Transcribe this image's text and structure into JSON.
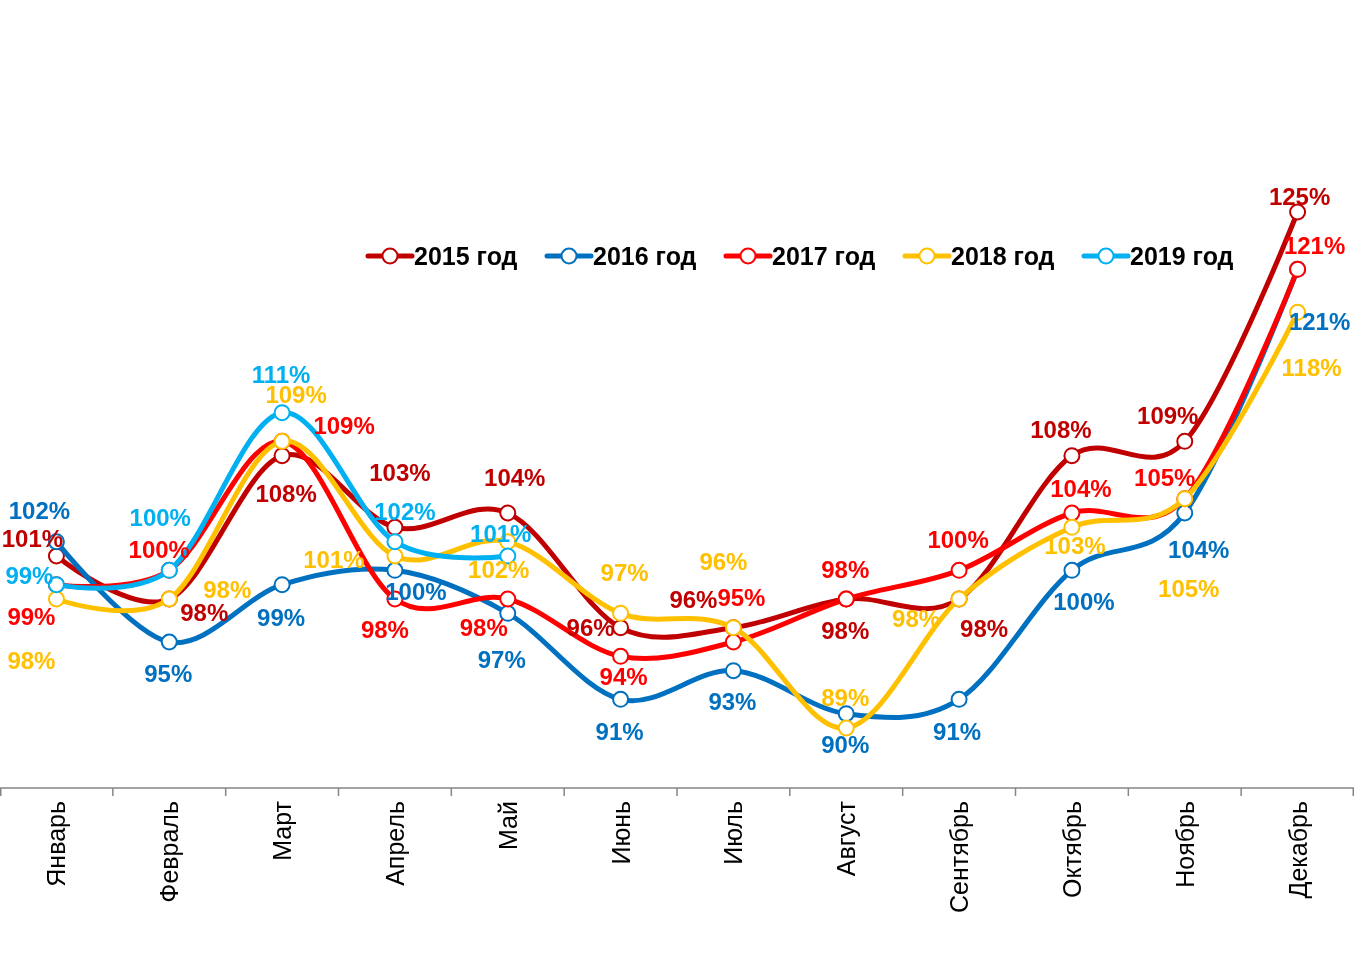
{
  "chart_data": {
    "type": "line",
    "categories": [
      "Январь",
      "Февраль",
      "Март",
      "Апрель",
      "Май",
      "Июнь",
      "Июль",
      "Август",
      "Сентябрь",
      "Октябрь",
      "Ноябрь",
      "Декабрь"
    ],
    "series": [
      {
        "name": "2015 год",
        "color": "#c00000",
        "values": [
          101,
          98,
          108,
          103,
          104,
          96,
          96,
          98,
          98,
          108,
          109,
          125
        ],
        "value_labels": [
          "101%",
          "98%",
          "108%",
          "103%",
          "104%",
          "96%",
          "96%",
          "98%",
          "98%",
          "108%",
          "109%",
          "125%"
        ]
      },
      {
        "name": "2016 год",
        "color": "#0070c0",
        "values": [
          102,
          95,
          99,
          100,
          97,
          91,
          93,
          90,
          91,
          100,
          104,
          121
        ],
        "value_labels": [
          "102%",
          "95%",
          "99%",
          "100%",
          "97%",
          "91%",
          "93%",
          "90%",
          "91%",
          "100%",
          "104%",
          "121%"
        ]
      },
      {
        "name": "2017 год",
        "color": "#ff0000",
        "values": [
          99,
          100,
          109,
          98,
          98,
          94,
          95,
          98,
          100,
          104,
          105,
          121
        ],
        "value_labels": [
          "99%",
          "100%",
          "109%",
          "98%",
          "98%",
          "94%",
          "95%",
          "98%",
          "100%",
          "104%",
          "105%",
          "121%"
        ]
      },
      {
        "name": "2018 год",
        "color": "#ffc000",
        "values": [
          98,
          98,
          109,
          101,
          102,
          97,
          96,
          89,
          98,
          103,
          105,
          118
        ],
        "value_labels": [
          "98%",
          "98%",
          "109%",
          "101%",
          "102%",
          "97%",
          "96%",
          "89%",
          "98%",
          "103%",
          "105%",
          "118%"
        ]
      },
      {
        "name": "2019 год",
        "color": "#00b0f0",
        "values": [
          99,
          100,
          111,
          102,
          101,
          null,
          null,
          null,
          null,
          null,
          null,
          null
        ],
        "value_labels": [
          "99%",
          "100%",
          "111%",
          "102%",
          "101%",
          null,
          null,
          null,
          null,
          null,
          null,
          null
        ]
      }
    ],
    "legend": "top",
    "marker": "circle",
    "tick_labels": "x"
  }
}
